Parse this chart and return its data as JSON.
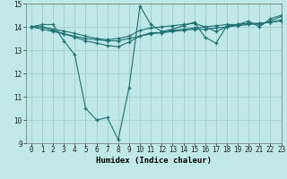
{
  "xlabel": "Humidex (Indice chaleur)",
  "xlim": [
    -0.5,
    23
  ],
  "ylim": [
    9,
    15
  ],
  "yticks": [
    9,
    10,
    11,
    12,
    13,
    14,
    15
  ],
  "xticks": [
    0,
    1,
    2,
    3,
    4,
    5,
    6,
    7,
    8,
    9,
    10,
    11,
    12,
    13,
    14,
    15,
    16,
    17,
    18,
    19,
    20,
    21,
    22,
    23
  ],
  "bg_color": "#c0e8e8",
  "grid_color": "#98c8c8",
  "line_color": "#1e7070",
  "line1": [
    14.0,
    14.1,
    14.1,
    13.4,
    12.8,
    10.5,
    10.0,
    10.1,
    9.15,
    11.4,
    14.9,
    14.1,
    13.8,
    13.9,
    14.05,
    14.2,
    13.55,
    13.3,
    14.05,
    14.1,
    14.25,
    14.0,
    14.35,
    14.5
  ],
  "line2": [
    14.0,
    14.0,
    13.85,
    13.7,
    13.55,
    13.4,
    13.3,
    13.2,
    13.15,
    13.35,
    13.6,
    13.75,
    13.75,
    13.8,
    13.85,
    13.9,
    13.9,
    13.95,
    14.0,
    14.05,
    14.1,
    14.15,
    14.2,
    14.25
  ],
  "line3": [
    14.0,
    13.9,
    13.8,
    13.7,
    13.6,
    13.5,
    13.45,
    13.4,
    13.4,
    13.5,
    13.6,
    13.7,
    13.75,
    13.85,
    13.9,
    13.95,
    14.0,
    14.05,
    14.1,
    14.1,
    14.15,
    14.15,
    14.2,
    14.3
  ],
  "line4": [
    14.0,
    14.0,
    13.9,
    13.82,
    13.72,
    13.6,
    13.5,
    13.45,
    13.5,
    13.6,
    13.85,
    13.95,
    14.0,
    14.05,
    14.1,
    14.15,
    14.0,
    13.8,
    14.0,
    14.1,
    14.15,
    14.1,
    14.25,
    14.45
  ],
  "tick_fontsize": 5.5,
  "xlabel_fontsize": 6.5
}
